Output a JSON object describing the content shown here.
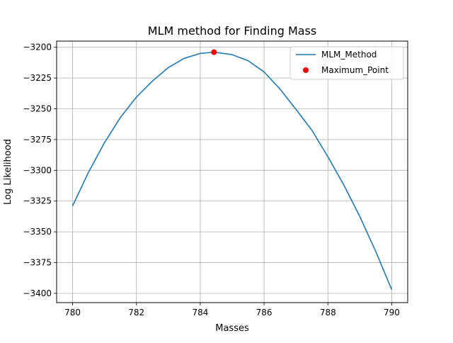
{
  "chart_data": {
    "type": "line",
    "title": "MLM method for Finding Mass",
    "xlabel": "Masses",
    "ylabel": "Log Likelihood",
    "xlim": [
      779.5,
      790.5
    ],
    "ylim": [
      -3407.5,
      -3195
    ],
    "xticks": [
      780,
      782,
      784,
      786,
      788,
      790
    ],
    "xtick_labels": [
      "780",
      "782",
      "784",
      "786",
      "788",
      "790"
    ],
    "yticks": [
      -3200,
      -3225,
      -3250,
      -3275,
      -3300,
      -3325,
      -3350,
      -3375,
      -3400
    ],
    "ytick_labels": [
      "−3200",
      "−3225",
      "−3250",
      "−3275",
      "−3300",
      "−3325",
      "−3350",
      "−3375",
      "−3400"
    ],
    "grid": true,
    "legend_position": "top-right",
    "series": [
      {
        "name": "MLM_Method",
        "kind": "line",
        "color": "#1f77b4",
        "x": [
          780,
          780.5,
          781,
          781.5,
          782,
          782.5,
          783,
          783.5,
          784,
          784.43,
          785,
          785.5,
          786,
          786.5,
          787,
          787.5,
          788,
          788.5,
          789,
          789.5,
          790
        ],
        "y": [
          -3329,
          -3301.5,
          -3277.5,
          -3257,
          -3240.5,
          -3227.5,
          -3216.5,
          -3209,
          -3205,
          -3204,
          -3206,
          -3211,
          -3220,
          -3234,
          -3250.5,
          -3267.5,
          -3289,
          -3312,
          -3337.5,
          -3366,
          -3397
        ]
      },
      {
        "name": "Maximum_Point",
        "kind": "scatter",
        "color": "#ff0000",
        "x": [
          784.43
        ],
        "y": [
          -3204
        ]
      }
    ]
  }
}
